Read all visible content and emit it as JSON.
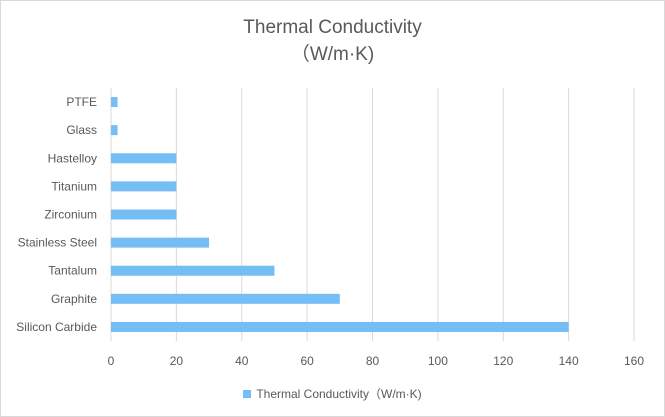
{
  "chart_data": {
    "type": "bar",
    "orientation": "horizontal",
    "title_lines": [
      "Thermal Conductivity",
      "（W/m·K)"
    ],
    "categories": [
      "PTFE",
      "Glass",
      "Hastelloy",
      "Titanium",
      "Zirconium",
      "Stainless Steel",
      "Tantalum",
      "Graphite",
      "Silicon Carbide"
    ],
    "series": [
      {
        "name": "Thermal Conductivity（W/m·K)",
        "values": [
          2,
          2,
          20,
          20,
          20,
          30,
          50,
          70,
          140
        ]
      }
    ],
    "xlim": [
      0,
      160
    ],
    "xticks": [
      "0",
      "20",
      "40",
      "60",
      "80",
      "100",
      "120",
      "140",
      "160"
    ],
    "grid": "vertical",
    "legend_position": "bottom",
    "bar_color": "#74bdf5"
  }
}
